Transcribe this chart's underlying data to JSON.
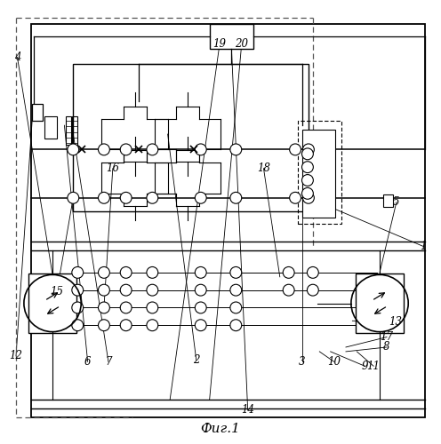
{
  "fig_width": 4.96,
  "fig_height": 5.0,
  "bg_color": "#ffffff",
  "line_color": "#000000",
  "title": "Фиг.1"
}
